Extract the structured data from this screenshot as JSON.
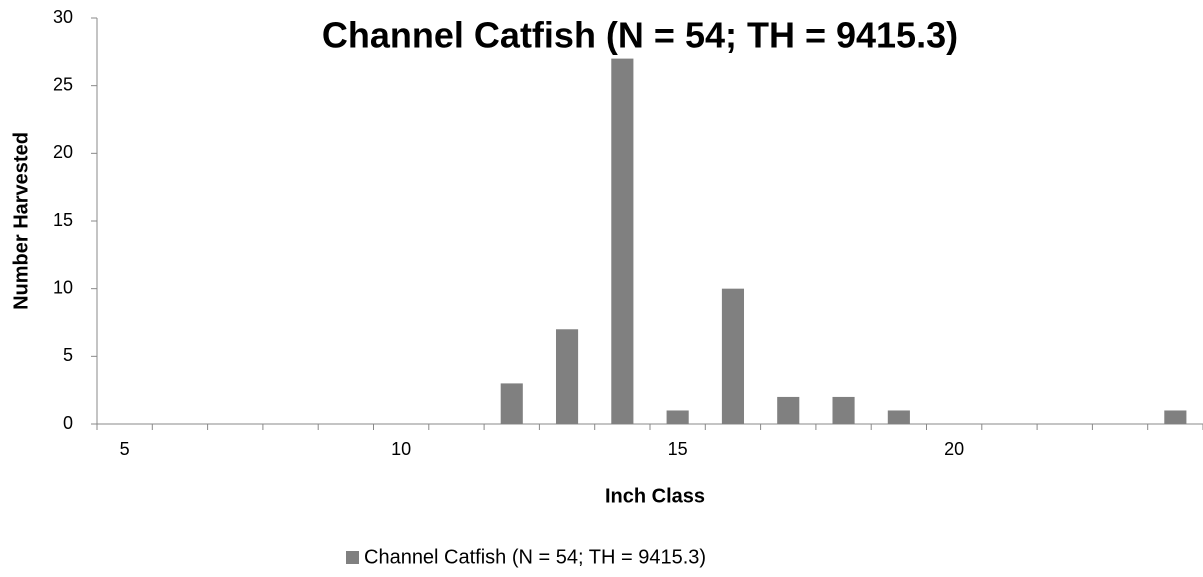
{
  "chart_data": {
    "type": "bar",
    "title": "Channel Catfish (N = 54; TH = 9415.3)",
    "x_label": "Inch Class",
    "y_label": "Number Harvested",
    "categories": [
      5,
      null,
      null,
      null,
      null,
      10,
      null,
      null,
      null,
      null,
      15,
      null,
      null,
      null,
      null,
      20,
      null,
      null,
      null,
      null
    ],
    "series": [
      {
        "name": "Channel Catfish (N = 54; TH = 9415.3)",
        "color": "#808080",
        "values": [
          0,
          0,
          0,
          0,
          0,
          0,
          0,
          3,
          7,
          27,
          1,
          10,
          2,
          2,
          1,
          0,
          0,
          0,
          0,
          1
        ]
      }
    ],
    "ylim": [
      0,
      30
    ],
    "yticks": [
      0,
      5,
      10,
      15,
      20,
      25,
      30
    ],
    "legend": "bottom"
  }
}
